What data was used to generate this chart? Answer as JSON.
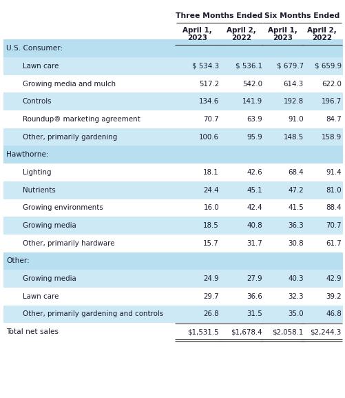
{
  "title_col1": "Three Months Ended",
  "title_col2": "Six Months Ended",
  "col_headers_line1": [
    "April 1,",
    "April 2,",
    "April 1,",
    "April 2,"
  ],
  "col_headers_line2": [
    "2023",
    "2022",
    "2023",
    "2022"
  ],
  "sections": [
    {
      "name": "U.S. Consumer:",
      "rows": [
        {
          "label": "Lawn care",
          "vals": [
            "$ 534.3",
            "$ 536.1",
            "$ 679.7",
            "$ 659.9"
          ]
        },
        {
          "label": "Growing media and mulch",
          "vals": [
            "517.2",
            "542.0",
            "614.3",
            "622.0"
          ]
        },
        {
          "label": "Controls",
          "vals": [
            "134.6",
            "141.9",
            "192.8",
            "196.7"
          ]
        },
        {
          "label": "Roundup® marketing agreement",
          "vals": [
            "70.7",
            "63.9",
            "91.0",
            "84.7"
          ]
        },
        {
          "label": "Other, primarily gardening",
          "vals": [
            "100.6",
            "95.9",
            "148.5",
            "158.9"
          ]
        }
      ]
    },
    {
      "name": "Hawthorne:",
      "rows": [
        {
          "label": "Lighting",
          "vals": [
            "18.1",
            "42.6",
            "68.4",
            "91.4"
          ]
        },
        {
          "label": "Nutrients",
          "vals": [
            "24.4",
            "45.1",
            "47.2",
            "81.0"
          ]
        },
        {
          "label": "Growing environments",
          "vals": [
            "16.0",
            "42.4",
            "41.5",
            "88.4"
          ]
        },
        {
          "label": "Growing media",
          "vals": [
            "18.5",
            "40.8",
            "36.3",
            "70.7"
          ]
        },
        {
          "label": "Other, primarily hardware",
          "vals": [
            "15.7",
            "31.7",
            "30.8",
            "61.7"
          ]
        }
      ]
    },
    {
      "name": "Other:",
      "rows": [
        {
          "label": "Growing media",
          "vals": [
            "24.9",
            "27.9",
            "40.3",
            "42.9"
          ]
        },
        {
          "label": "Lawn care",
          "vals": [
            "29.7",
            "36.6",
            "32.3",
            "39.2"
          ]
        },
        {
          "label": "Other, primarily gardening and controls",
          "vals": [
            "26.8",
            "31.5",
            "35.0",
            "46.8"
          ]
        }
      ]
    }
  ],
  "total_row": {
    "label": "Total net sales",
    "vals": [
      "$1,531.5",
      "$1,678.4",
      "$2,058.1",
      "$2,244.3"
    ]
  },
  "bg_light": "#cce9f5",
  "bg_white": "#ffffff",
  "bg_section": "#b8dff0",
  "text_color": "#1a1a2e",
  "fig_width": 5.01,
  "fig_height": 5.77,
  "dpi": 100
}
